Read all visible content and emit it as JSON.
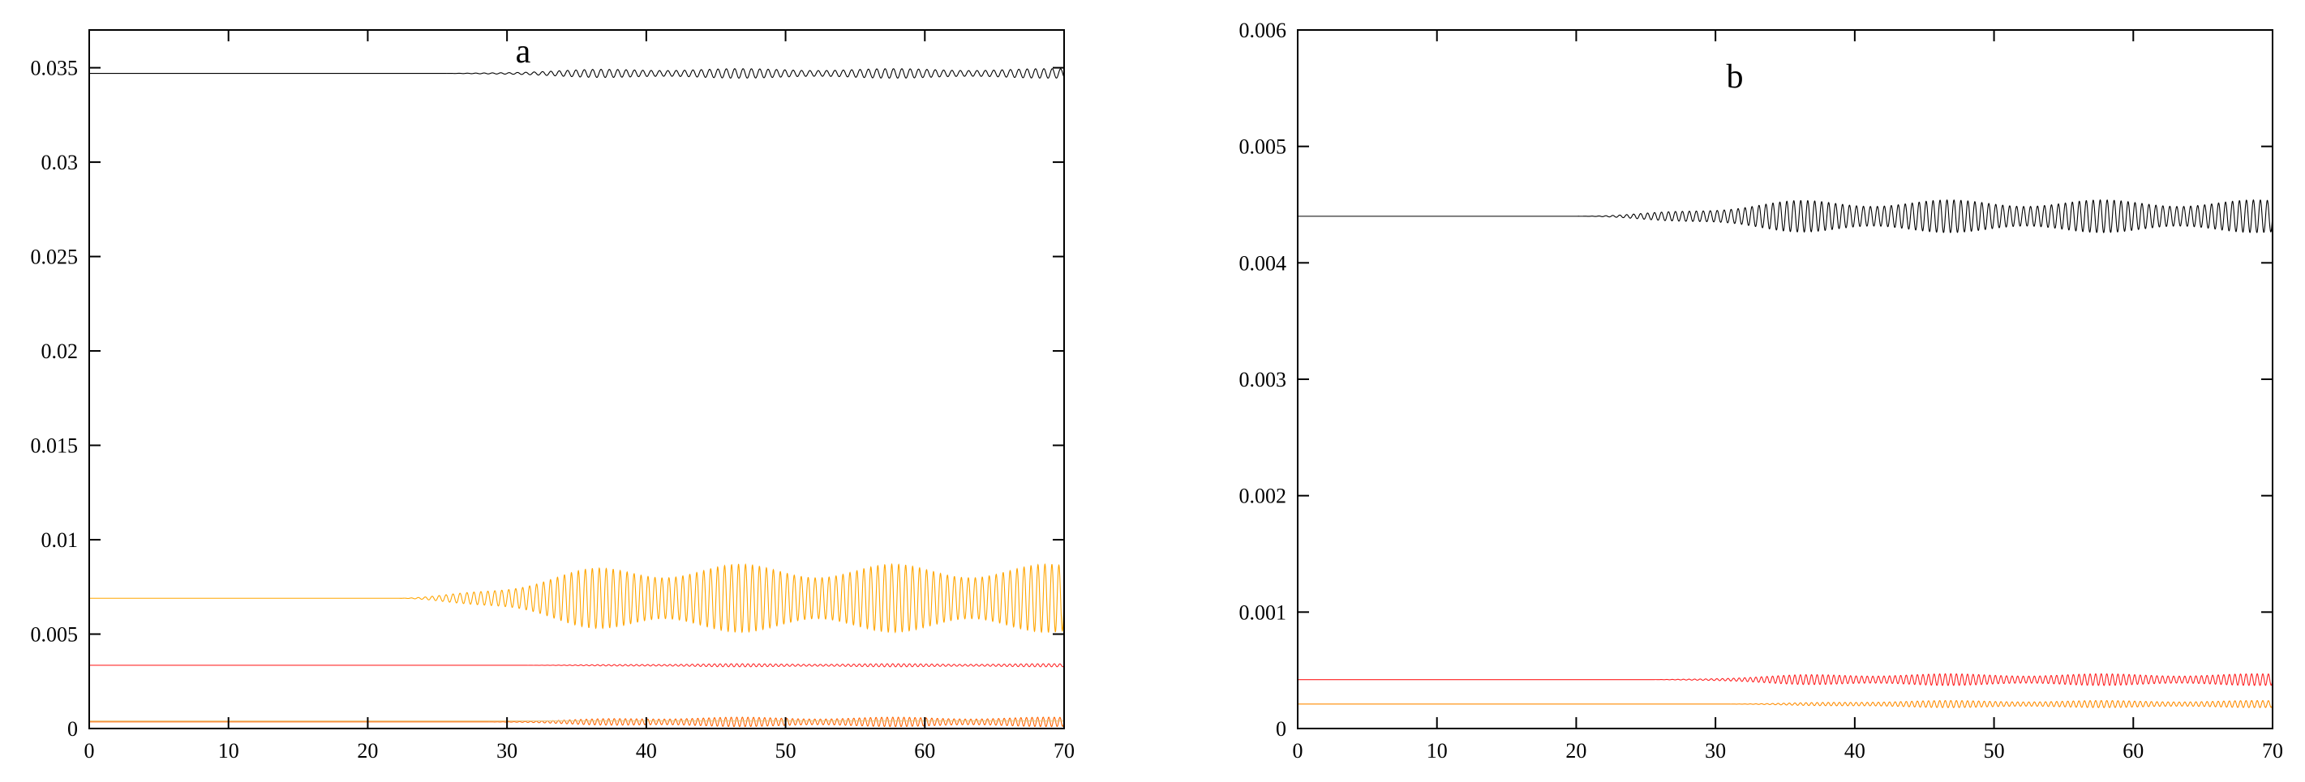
{
  "chart_data": [
    {
      "type": "line",
      "panel_label": "a",
      "x_ticks": [
        "0",
        "10",
        "20",
        "30",
        "40",
        "50",
        "60",
        "70"
      ],
      "y_ticks": [
        "0",
        "0.005",
        "0.01",
        "0.015",
        "0.02",
        "0.025",
        "0.03",
        "0.035"
      ],
      "xlim": [
        0,
        70
      ],
      "ylim": [
        0,
        0.037
      ],
      "grid": false,
      "series": [
        {
          "color": "#000000",
          "mean": 0.0347,
          "onset": 25,
          "growth_end": 40,
          "amplitude": 0.00025,
          "period": 0.6
        },
        {
          "color": "#FFA500",
          "mean": 0.0069,
          "onset": 22,
          "growth_end": 40,
          "amplitude": 0.0018,
          "period": 0.5
        },
        {
          "color": "#FF2A2A",
          "mean": 0.00335,
          "onset": 30,
          "growth_end": 45,
          "amplitude": 8e-05,
          "period": 0.4
        },
        {
          "color": "#FF6600",
          "mean": 0.00035,
          "onset": 28,
          "growth_end": 42,
          "amplitude": 0.00025,
          "period": 0.4
        },
        {
          "color": "#E6C27A",
          "mean": 0.0004,
          "onset": 70,
          "growth_end": 70,
          "amplitude": 0,
          "period": 1
        }
      ]
    },
    {
      "type": "line",
      "panel_label": "b",
      "x_ticks": [
        "0",
        "10",
        "20",
        "30",
        "40",
        "50",
        "60",
        "70"
      ],
      "y_ticks": [
        "0",
        "0.001",
        "0.002",
        "0.003",
        "0.004",
        "0.005",
        "0.006"
      ],
      "xlim": [
        0,
        70
      ],
      "ylim": [
        0,
        0.006
      ],
      "grid": false,
      "series": [
        {
          "color": "#000000",
          "mean": 0.0044,
          "onset": 20,
          "growth_end": 38,
          "amplitude": 0.00014,
          "period": 0.5
        },
        {
          "color": "#FF2020",
          "mean": 0.00042,
          "onset": 25,
          "growth_end": 40,
          "amplitude": 5e-05,
          "period": 0.4
        },
        {
          "color": "#FF8C00",
          "mean": 0.00021,
          "onset": 30,
          "growth_end": 45,
          "amplitude": 3e-05,
          "period": 0.4
        }
      ]
    }
  ]
}
